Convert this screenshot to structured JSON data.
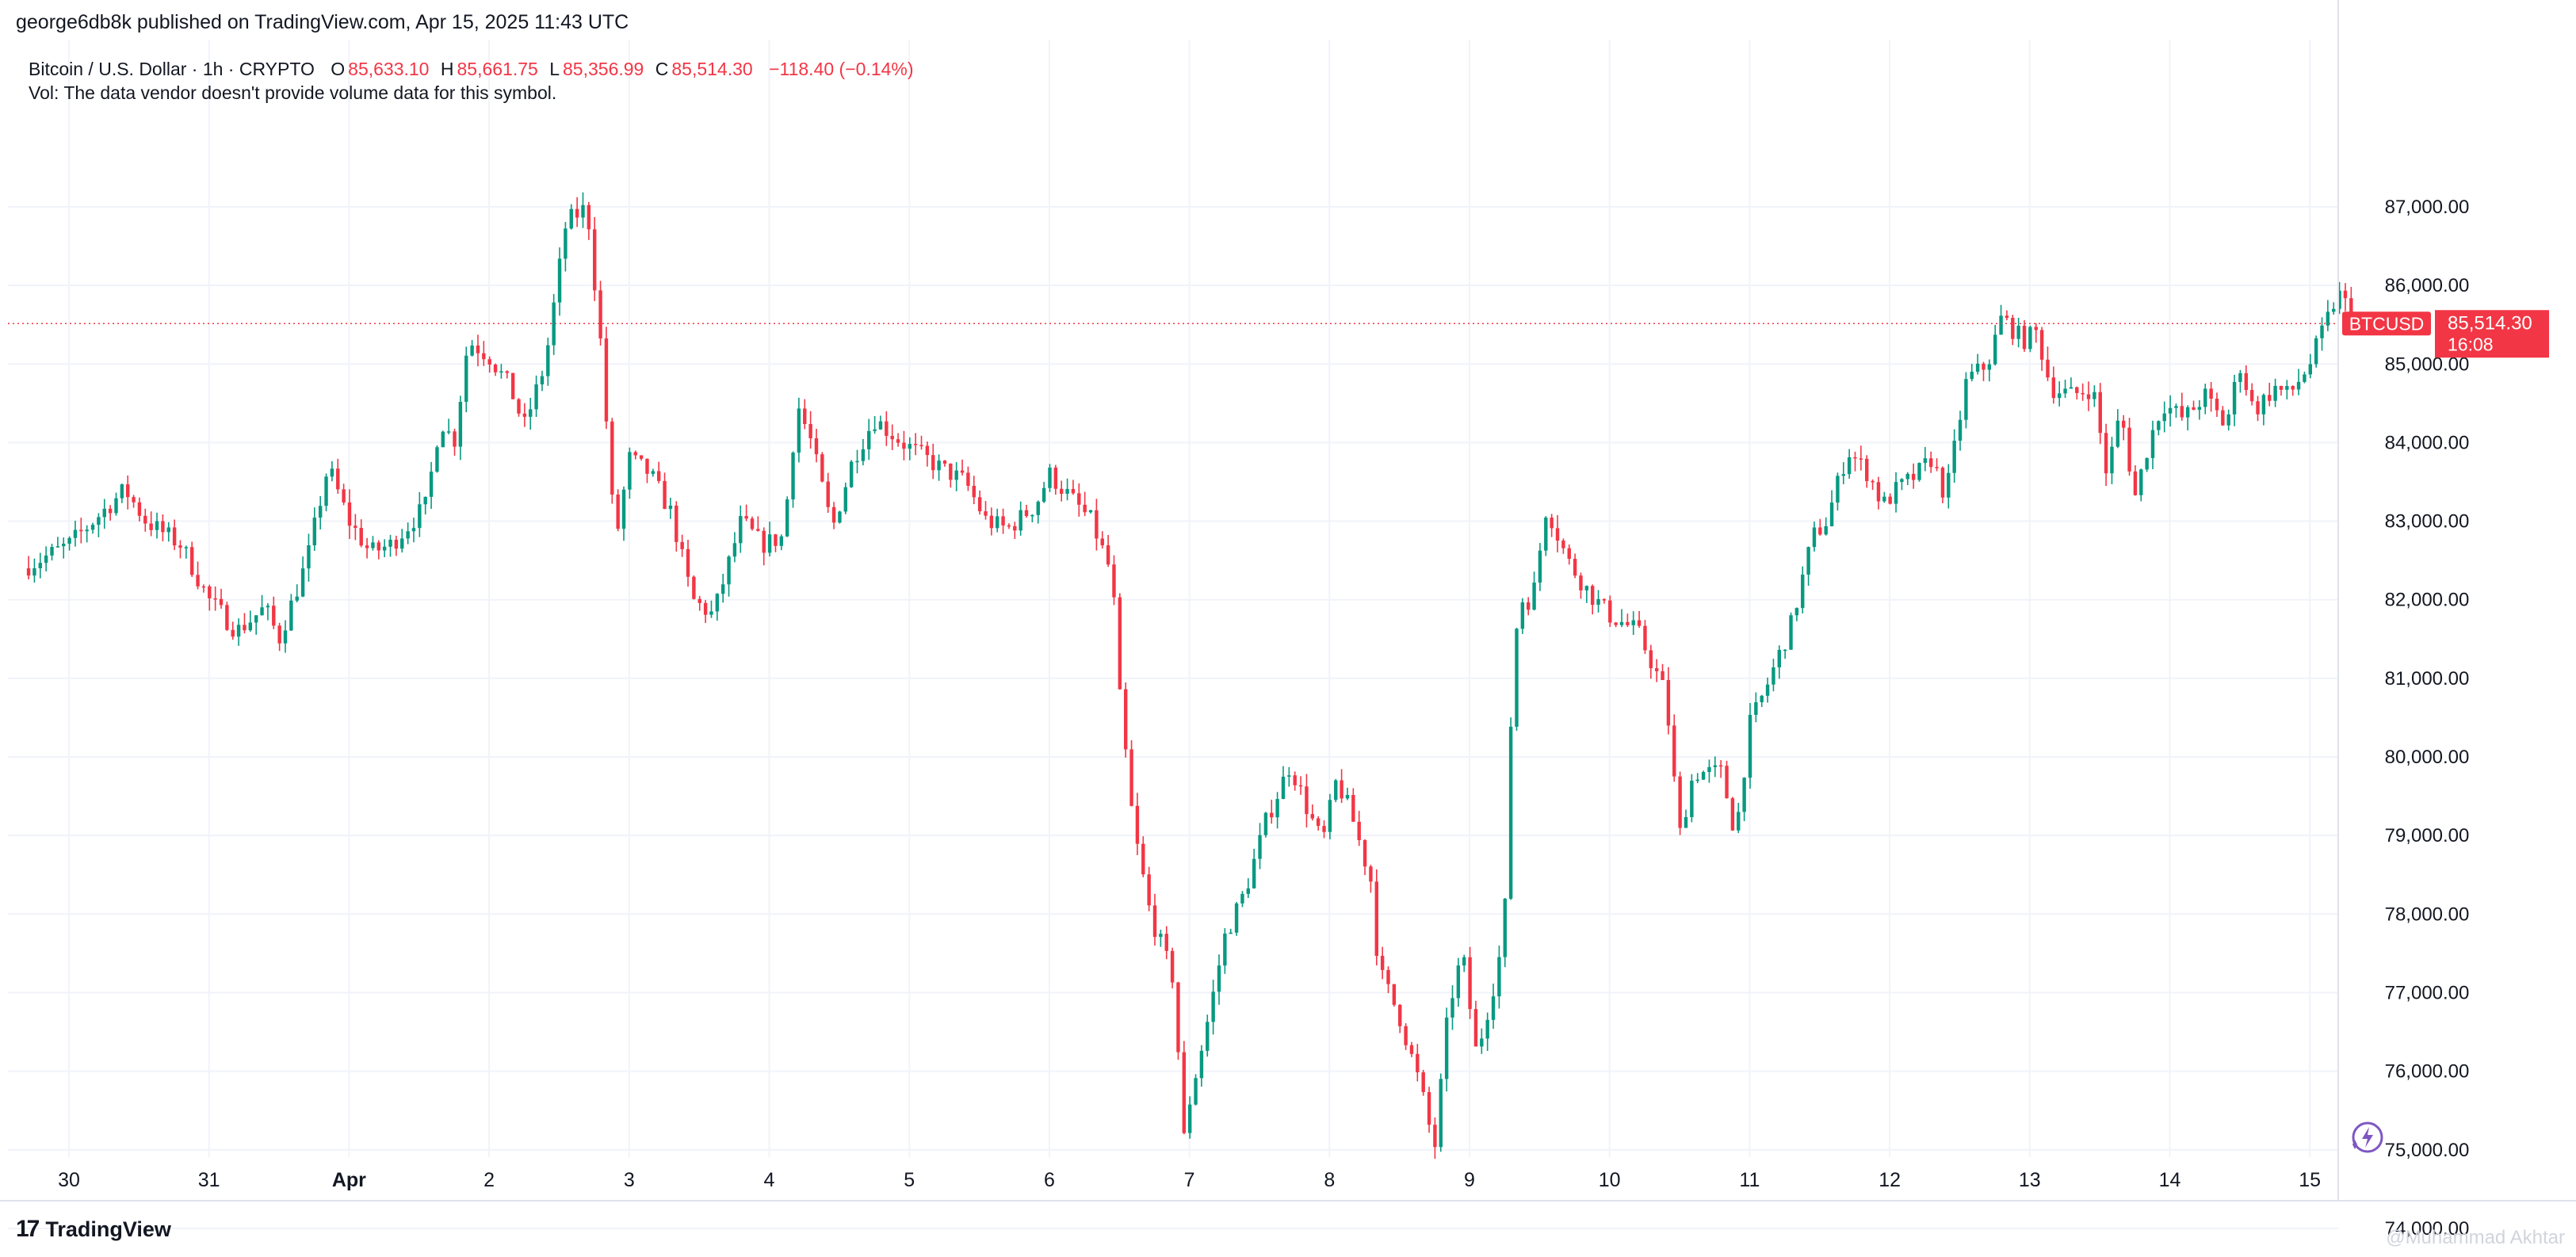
{
  "publisher_line": "george6db8k published on TradingView.com, Apr 15, 2025 11:43 UTC",
  "legend": {
    "symbol": "Bitcoin / U.S. Dollar · 1h · CRYPTO",
    "o_label": "O",
    "o_value": "85,633.10",
    "h_label": "H",
    "h_value": "85,661.75",
    "l_label": "L",
    "l_value": "85,356.99",
    "c_label": "C",
    "c_value": "85,514.30",
    "change": "−118.40 (−0.14%)",
    "volume_note": "Vol: The data vendor doesn't provide volume data for this symbol."
  },
  "price_tag": {
    "symbol": "BTCUSD",
    "price": "85,514.30",
    "countdown": "16:08"
  },
  "footer": {
    "brand": "TradingView",
    "watermark": "@Muhammad Akhtar"
  },
  "colors": {
    "up": "#089981",
    "down": "#f23645",
    "grid": "#f0f3fa",
    "text": "#131722"
  },
  "icons": [
    "tradingview-logo-icon",
    "lightning-icon"
  ],
  "chart_data": {
    "type": "candlestick",
    "interval": "1h",
    "ylim": [
      73200,
      87500
    ],
    "y_ticks": [
      74000,
      75000,
      76000,
      77000,
      78000,
      79000,
      80000,
      81000,
      82000,
      83000,
      84000,
      85000,
      86000,
      87000
    ],
    "y_tick_labels": [
      "74,000.00",
      "75,000.00",
      "76,000.00",
      "77,000.00",
      "78,000.00",
      "79,000.00",
      "80,000.00",
      "81,000.00",
      "82,000.00",
      "83,000.00",
      "84,000.00",
      "85,000.00",
      "86,000.00",
      "87,000.00"
    ],
    "x_tick_labels": [
      "30",
      "31",
      "Apr",
      "2",
      "3",
      "4",
      "5",
      "6",
      "7",
      "8",
      "9",
      "10",
      "11",
      "12",
      "13",
      "14",
      "15"
    ],
    "x_tick_days": [
      0,
      1,
      2,
      3,
      4,
      5,
      6,
      7,
      8,
      9,
      10,
      11,
      12,
      13,
      14,
      15,
      16
    ],
    "last_price": 85514.3,
    "anchors": [
      [
        -0.33,
        82400
      ],
      [
        0.0,
        82700
      ],
      [
        0.4,
        83400
      ],
      [
        0.55,
        83000
      ],
      [
        0.8,
        82700
      ],
      [
        1.0,
        82000
      ],
      [
        1.2,
        81600
      ],
      [
        1.4,
        81900
      ],
      [
        1.5,
        81500
      ],
      [
        1.7,
        82500
      ],
      [
        1.85,
        83700
      ],
      [
        2.0,
        83000
      ],
      [
        2.15,
        82600
      ],
      [
        2.3,
        82700
      ],
      [
        2.55,
        83200
      ],
      [
        2.65,
        84300
      ],
      [
        2.75,
        84000
      ],
      [
        2.85,
        85300
      ],
      [
        3.0,
        85100
      ],
      [
        3.15,
        84700
      ],
      [
        3.25,
        84200
      ],
      [
        3.4,
        85000
      ],
      [
        3.55,
        86800
      ],
      [
        3.7,
        87000
      ],
      [
        3.8,
        85200
      ],
      [
        3.9,
        82700
      ],
      [
        4.0,
        83800
      ],
      [
        4.15,
        83600
      ],
      [
        4.3,
        83100
      ],
      [
        4.45,
        82000
      ],
      [
        4.6,
        81800
      ],
      [
        4.8,
        83000
      ],
      [
        4.95,
        82700
      ],
      [
        5.1,
        82800
      ],
      [
        5.2,
        84500
      ],
      [
        5.3,
        84000
      ],
      [
        5.45,
        82900
      ],
      [
        5.6,
        83800
      ],
      [
        5.75,
        84300
      ],
      [
        5.95,
        84000
      ],
      [
        6.2,
        83700
      ],
      [
        6.4,
        83500
      ],
      [
        6.55,
        83000
      ],
      [
        6.7,
        82900
      ],
      [
        6.9,
        83200
      ],
      [
        7.0,
        83600
      ],
      [
        7.1,
        83400
      ],
      [
        7.3,
        83000
      ],
      [
        7.45,
        82300
      ],
      [
        7.5,
        80800
      ],
      [
        7.6,
        79100
      ],
      [
        7.72,
        78000
      ],
      [
        7.9,
        77100
      ],
      [
        7.95,
        75000
      ],
      [
        8.0,
        75600
      ],
      [
        8.15,
        76800
      ],
      [
        8.25,
        77700
      ],
      [
        8.4,
        78300
      ],
      [
        8.55,
        79200
      ],
      [
        8.72,
        79900
      ],
      [
        8.85,
        79300
      ],
      [
        8.95,
        78900
      ],
      [
        9.05,
        79700
      ],
      [
        9.15,
        79300
      ],
      [
        9.3,
        78400
      ],
      [
        9.35,
        77300
      ],
      [
        9.5,
        76700
      ],
      [
        9.65,
        75800
      ],
      [
        9.75,
        75000
      ],
      [
        9.85,
        76800
      ],
      [
        9.95,
        77500
      ],
      [
        10.05,
        76200
      ],
      [
        10.2,
        77300
      ],
      [
        10.25,
        77900
      ],
      [
        10.3,
        80700
      ],
      [
        10.35,
        82000
      ],
      [
        10.45,
        82000
      ],
      [
        10.55,
        83200
      ],
      [
        10.7,
        82500
      ],
      [
        10.85,
        82100
      ],
      [
        11.0,
        81800
      ],
      [
        11.2,
        81600
      ],
      [
        11.4,
        80800
      ],
      [
        11.5,
        79000
      ],
      [
        11.6,
        79800
      ],
      [
        11.8,
        79800
      ],
      [
        11.9,
        79000
      ],
      [
        12.0,
        80400
      ],
      [
        12.1,
        80800
      ],
      [
        12.3,
        81700
      ],
      [
        12.45,
        82800
      ],
      [
        12.55,
        83000
      ],
      [
        12.7,
        83900
      ],
      [
        12.85,
        83600
      ],
      [
        12.95,
        83200
      ],
      [
        13.05,
        83400
      ],
      [
        13.2,
        83600
      ],
      [
        13.3,
        83800
      ],
      [
        13.4,
        83300
      ],
      [
        13.55,
        84800
      ],
      [
        13.7,
        85000
      ],
      [
        13.8,
        85600
      ],
      [
        13.95,
        85300
      ],
      [
        14.05,
        85400
      ],
      [
        14.15,
        84700
      ],
      [
        14.3,
        84600
      ],
      [
        14.45,
        84700
      ],
      [
        14.55,
        83600
      ],
      [
        14.65,
        84400
      ],
      [
        14.75,
        83300
      ],
      [
        14.85,
        84000
      ],
      [
        14.95,
        84500
      ],
      [
        15.1,
        84300
      ],
      [
        15.25,
        84600
      ],
      [
        15.4,
        84200
      ],
      [
        15.5,
        85000
      ],
      [
        15.6,
        84400
      ],
      [
        15.75,
        84700
      ],
      [
        15.85,
        84600
      ],
      [
        16.0,
        85000
      ],
      [
        16.2,
        85900
      ],
      [
        16.35,
        85514
      ]
    ]
  }
}
